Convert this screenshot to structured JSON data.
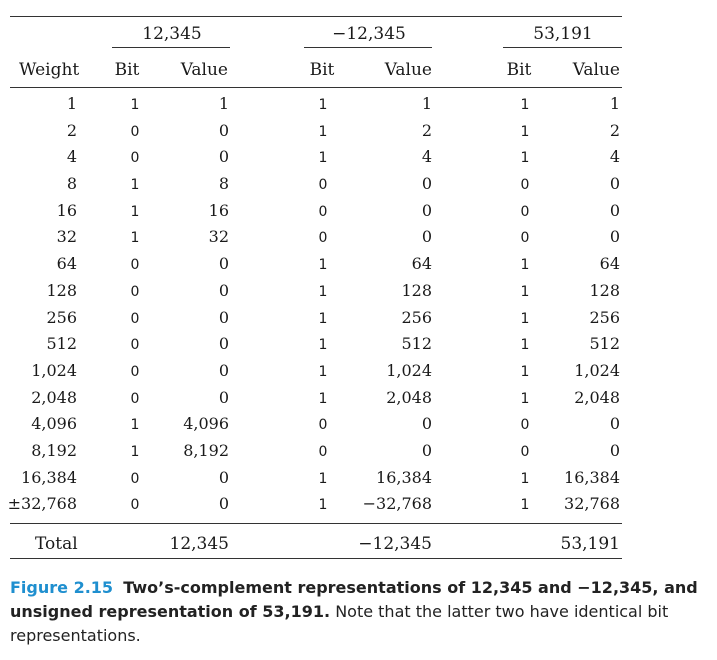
{
  "groups": [
    "12,345",
    "−12,345",
    "53,191"
  ],
  "headers": {
    "weight": "Weight",
    "bit": "Bit",
    "value": "Value"
  },
  "rows": [
    {
      "weight": "1",
      "b1": "1",
      "v1": "1",
      "b2": "1",
      "v2": "1",
      "b3": "1",
      "v3": "1"
    },
    {
      "weight": "2",
      "b1": "0",
      "v1": "0",
      "b2": "1",
      "v2": "2",
      "b3": "1",
      "v3": "2"
    },
    {
      "weight": "4",
      "b1": "0",
      "v1": "0",
      "b2": "1",
      "v2": "4",
      "b3": "1",
      "v3": "4"
    },
    {
      "weight": "8",
      "b1": "1",
      "v1": "8",
      "b2": "0",
      "v2": "0",
      "b3": "0",
      "v3": "0"
    },
    {
      "weight": "16",
      "b1": "1",
      "v1": "16",
      "b2": "0",
      "v2": "0",
      "b3": "0",
      "v3": "0"
    },
    {
      "weight": "32",
      "b1": "1",
      "v1": "32",
      "b2": "0",
      "v2": "0",
      "b3": "0",
      "v3": "0"
    },
    {
      "weight": "64",
      "b1": "0",
      "v1": "0",
      "b2": "1",
      "v2": "64",
      "b3": "1",
      "v3": "64"
    },
    {
      "weight": "128",
      "b1": "0",
      "v1": "0",
      "b2": "1",
      "v2": "128",
      "b3": "1",
      "v3": "128"
    },
    {
      "weight": "256",
      "b1": "0",
      "v1": "0",
      "b2": "1",
      "v2": "256",
      "b3": "1",
      "v3": "256"
    },
    {
      "weight": "512",
      "b1": "0",
      "v1": "0",
      "b2": "1",
      "v2": "512",
      "b3": "1",
      "v3": "512"
    },
    {
      "weight": "1,024",
      "b1": "0",
      "v1": "0",
      "b2": "1",
      "v2": "1,024",
      "b3": "1",
      "v3": "1,024"
    },
    {
      "weight": "2,048",
      "b1": "0",
      "v1": "0",
      "b2": "1",
      "v2": "2,048",
      "b3": "1",
      "v3": "2,048"
    },
    {
      "weight": "4,096",
      "b1": "1",
      "v1": "4,096",
      "b2": "0",
      "v2": "0",
      "b3": "0",
      "v3": "0"
    },
    {
      "weight": "8,192",
      "b1": "1",
      "v1": "8,192",
      "b2": "0",
      "v2": "0",
      "b3": "0",
      "v3": "0"
    },
    {
      "weight": "16,384",
      "b1": "0",
      "v1": "0",
      "b2": "1",
      "v2": "16,384",
      "b3": "1",
      "v3": "16,384"
    },
    {
      "weight": "±32,768",
      "b1": "0",
      "v1": "0",
      "b2": "1",
      "v2": "−32,768",
      "b3": "1",
      "v3": "32,768"
    }
  ],
  "total": {
    "label": "Total",
    "v1": "12,345",
    "v2": "−12,345",
    "v3": "53,191"
  },
  "caption": {
    "figlabel": "Figure 2.15",
    "title": "Two’s-complement representations of 12,345 and −12,345, and unsigned representation of 53,191.",
    "note": "Note that the latter two have identical bit representations."
  },
  "colors": {
    "caption_label": "#1f8fcf",
    "text": "#1a1a1a"
  }
}
